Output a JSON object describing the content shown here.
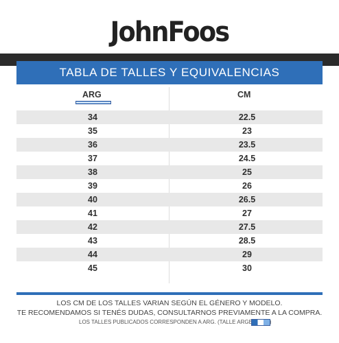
{
  "brand": {
    "logo_text": "JohnFoos"
  },
  "table": {
    "title": "TABLA DE TALLES Y EQUIVALENCIAS",
    "headers": {
      "arg": "ARG",
      "cm": "CM"
    },
    "rows": [
      {
        "arg": "34",
        "cm": "22.5"
      },
      {
        "arg": "35",
        "cm": "23"
      },
      {
        "arg": "36",
        "cm": "23.5"
      },
      {
        "arg": "37",
        "cm": "24.5"
      },
      {
        "arg": "38",
        "cm": "25"
      },
      {
        "arg": "39",
        "cm": "26"
      },
      {
        "arg": "40",
        "cm": "26.5"
      },
      {
        "arg": "41",
        "cm": "27"
      },
      {
        "arg": "42",
        "cm": "27.5"
      },
      {
        "arg": "43",
        "cm": "28.5"
      },
      {
        "arg": "44",
        "cm": "29"
      },
      {
        "arg": "45",
        "cm": "30"
      }
    ]
  },
  "notes": {
    "line1": "LOS CM DE LOS TALLES VARIAN SEGÚN EL GÉNERO Y MODELO.",
    "line2": "TE RECOMENDAMOS SI TENÉS DUDAS, CONSULTARNOS PREVIAMENTE A LA COMPRA.",
    "line3": "LOS TALLES PUBLICADOS CORRESPONDEN A ARG. (TALLE ARGENTINO)"
  },
  "colors": {
    "accent": "#2f6fb8",
    "band": "#2b2b2b",
    "row_shade": "#e8e8e8"
  },
  "icons": {
    "arg_flag": "argentina-flag-icon"
  }
}
